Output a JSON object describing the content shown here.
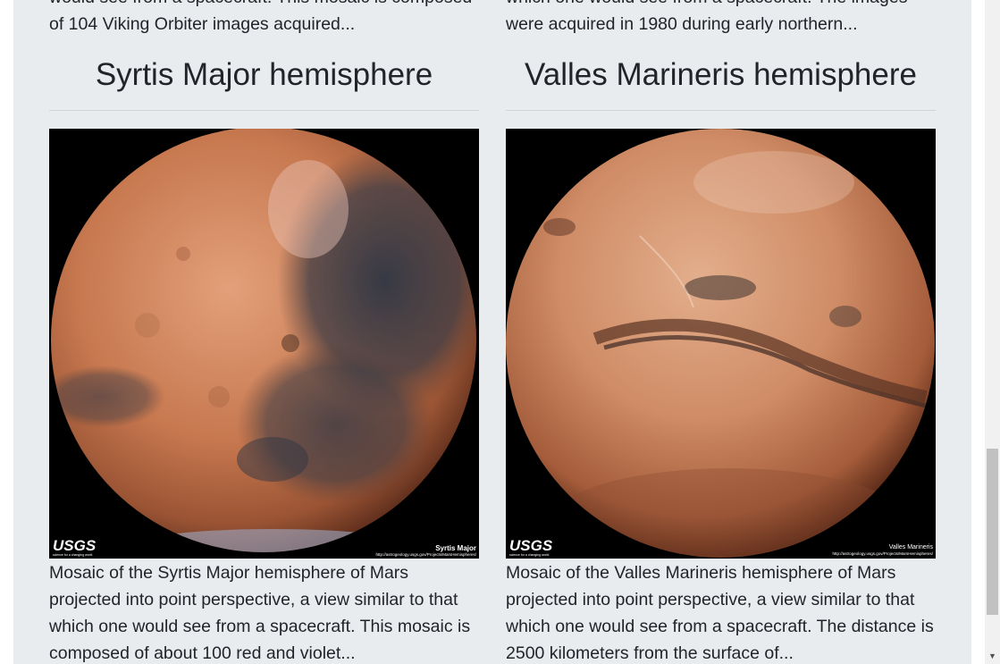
{
  "hemispheres": [
    {
      "prev_description": "would see from a spacecraft. This mosaic is composed of 104 Viking Orbiter images acquired...",
      "title": "Syrtis Major hemisphere",
      "image_caption": "Syrtis Major",
      "image_logo": "USGS",
      "image_tagline": "science for a changing world",
      "image_url": "http://astrogeology.usgs.gov/Projects/MarsHemispheres/",
      "description": "Mosaic of the Syrtis Major hemisphere of Mars projected into point perspective, a view similar to that which one would see from a spacecraft. This mosaic is composed of about 100 red and violet..."
    },
    {
      "prev_description": "which one would see from a spacecraft. The images were acquired in 1980 during early northern...",
      "title": "Valles Marineris hemisphere",
      "image_caption": "Valles Marineris",
      "image_logo": "USGS",
      "image_tagline": "science for a changing world",
      "image_url": "http://astrogeology.usgs.gov/Projects/MarsHemispheres/",
      "description": "Mosaic of the Valles Marineris hemisphere of Mars projected into point perspective, a view similar to that which one would see from a spacecraft. The distance is 2500 kilometers from the surface of..."
    }
  ],
  "colors": {
    "background": "#e9ecef",
    "text": "#212529",
    "mars_light": "#d9946a",
    "mars_dark": "#7a4029",
    "mars_shadow": "#3a3f4a"
  },
  "scrollbar": {
    "up_arrow": "▲",
    "down_arrow": "▼"
  }
}
